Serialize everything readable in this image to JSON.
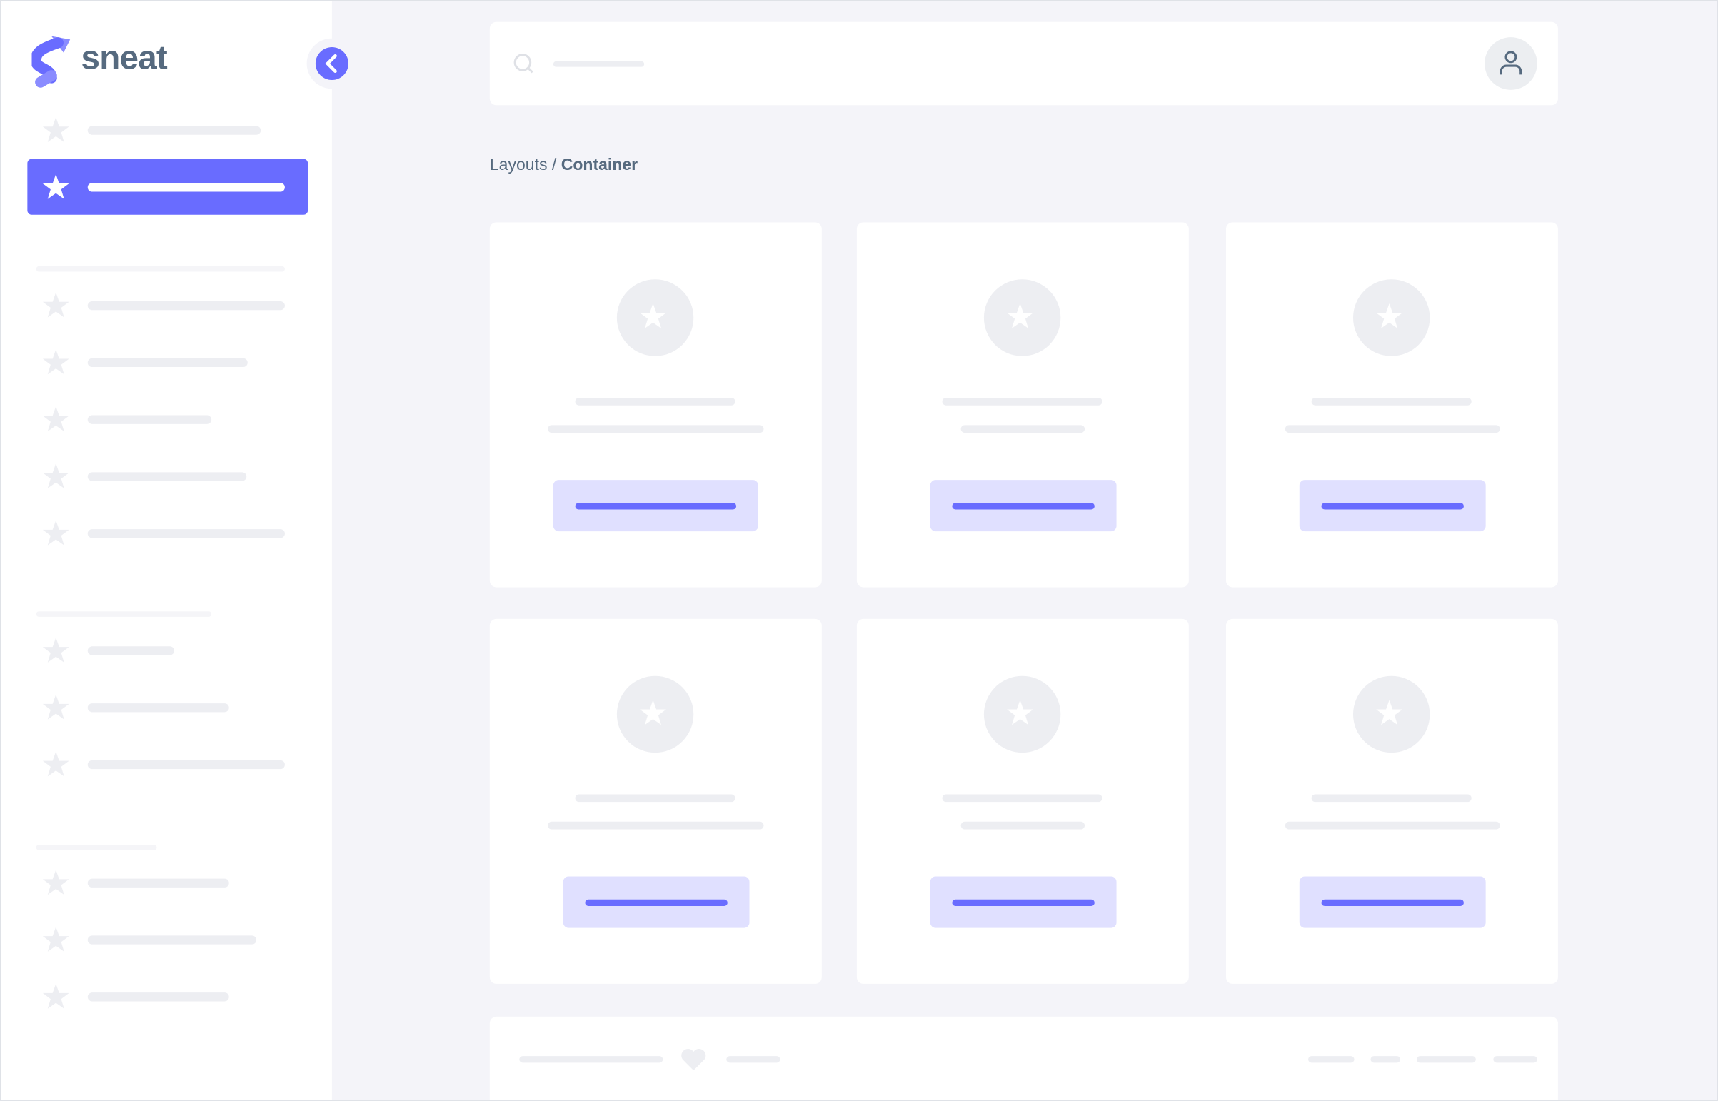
{
  "app": {
    "brand": "sneat",
    "accent": "#696cff",
    "text_color": "#566a7f"
  },
  "breadcrumb": {
    "parent": "Layouts",
    "separator": "/",
    "current": "Container"
  },
  "icons": {
    "logo": "sneat-logo",
    "toggle": "chevron-left-icon",
    "menu": "star-icon",
    "search": "search-icon",
    "user": "user-icon",
    "card": "star-icon",
    "footer": "heart-icon"
  },
  "sidebar": {
    "active_index": 1
  }
}
